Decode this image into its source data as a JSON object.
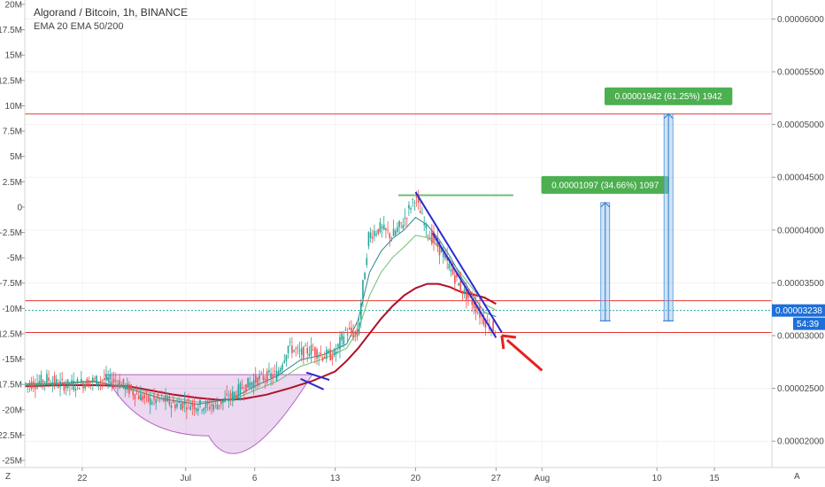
{
  "header": {
    "title": "Algorand / Bitcoin, 1h, BINANCE",
    "indicators": "EMA 20 EMA 50/200"
  },
  "corner": {
    "left": "Z",
    "right": "A"
  },
  "price_tag": {
    "value": "0.00003238",
    "countdown": "54:39",
    "color": "#1e6fd9"
  },
  "colors": {
    "ema20": "#2b8a8a",
    "ema50": "#6fbf73",
    "ema200": "#b0102a",
    "resistance": "#e53935",
    "current": "#26a69a",
    "channel": "#2a2ad6",
    "cup": "#b565c4",
    "target_band": "#90c4ef",
    "callout": "#4caf50",
    "arrow": "#e8201f"
  },
  "callouts": [
    {
      "label": "0.00001097 (34.66%) 1097"
    },
    {
      "label": "0.00001942 (61.25%) 1942"
    }
  ],
  "chart_data": {
    "type": "line",
    "title": "Algorand / Bitcoin, 1h, BINANCE",
    "x_ticks": [
      "22",
      "Jul",
      "6",
      "13",
      "20",
      "27",
      "Aug",
      "10",
      "15"
    ],
    "x_ticks_day": [
      22,
      31,
      37,
      44,
      51,
      58,
      62,
      72,
      77
    ],
    "x_range_day": [
      17,
      82
    ],
    "y_left_ticks": [
      "20M",
      "17.5M",
      "15M",
      "12.5M",
      "10M",
      "7.5M",
      "5M",
      "2.5M",
      "0",
      "-2.5M",
      "-5M",
      "-7.5M",
      "-10M",
      "-12.5M",
      "-15M",
      "-17.5M",
      "-20M",
      "-22.5M",
      "-25M"
    ],
    "y_right_ticks": [
      "0.00006000",
      "0.00005500",
      "0.00005000",
      "0.00004500",
      "0.00004000",
      "0.00003500",
      "0.00003000",
      "0.00002500",
      "0.00002000"
    ],
    "y_range": [
      1.75e-05,
      6.18e-05
    ],
    "horizontal_levels": [
      {
        "name": "resistance-top",
        "price": 5.1e-05
      },
      {
        "name": "resistance-upper",
        "price": 3.33e-05
      },
      {
        "name": "support-lower",
        "price": 3.03e-05
      },
      {
        "name": "current",
        "price": 3.238e-05
      },
      {
        "name": "local-high",
        "price": 4.33e-05
      }
    ],
    "price": {
      "day": [
        17,
        18,
        19,
        20,
        21,
        22,
        23,
        24,
        25,
        26,
        27,
        28,
        29,
        30,
        31,
        32,
        33,
        34,
        35,
        36,
        37,
        38,
        39,
        40,
        41,
        42,
        43,
        44,
        45,
        46,
        47,
        48,
        49,
        50,
        51,
        52,
        53,
        54,
        55,
        56,
        57,
        58
      ],
      "value": [
        2.54e-05,
        2.55e-05,
        2.59e-05,
        2.54e-05,
        2.53e-05,
        2.55e-05,
        2.57e-05,
        2.58e-05,
        2.57e-05,
        2.5e-05,
        2.43e-05,
        2.38e-05,
        2.4e-05,
        2.35e-05,
        2.36e-05,
        2.34e-05,
        2.33e-05,
        2.36e-05,
        2.42e-05,
        2.51e-05,
        2.57e-05,
        2.61e-05,
        2.63e-05,
        2.9e-05,
        2.83e-05,
        2.87e-05,
        2.81e-05,
        2.82e-05,
        3.05e-05,
        3e-05,
        3.95e-05,
        4.02e-05,
        3.94e-05,
        4.08e-05,
        4.32e-05,
        4e-05,
        3.85e-05,
        3.65e-05,
        3.45e-05,
        3.32e-05,
        3.15e-05,
        3.05e-05
      ]
    },
    "ema20": {
      "day": [
        17,
        20,
        23,
        26,
        29,
        32,
        35,
        37,
        39,
        41,
        43,
        45,
        46,
        47,
        48,
        49,
        50,
        51,
        52,
        53,
        54,
        55,
        56,
        57,
        58
      ],
      "value": [
        2.54e-05,
        2.55e-05,
        2.57e-05,
        2.5e-05,
        2.4e-05,
        2.35e-05,
        2.4e-05,
        2.52e-05,
        2.62e-05,
        2.77e-05,
        2.82e-05,
        2.92e-05,
        3.15e-05,
        3.6e-05,
        3.8e-05,
        3.92e-05,
        4e-05,
        4.12e-05,
        4.05e-05,
        3.92e-05,
        3.75e-05,
        3.55e-05,
        3.38e-05,
        3.22e-05,
        3.18e-05
      ]
    },
    "ema50": {
      "day": [
        17,
        20,
        23,
        26,
        29,
        32,
        35,
        37,
        39,
        41,
        43,
        45,
        46,
        47,
        48,
        49,
        50,
        51,
        52,
        53,
        54,
        55,
        56,
        57,
        58
      ],
      "value": [
        2.53e-05,
        2.54e-05,
        2.56e-05,
        2.51e-05,
        2.43e-05,
        2.37e-05,
        2.39e-05,
        2.48e-05,
        2.57e-05,
        2.71e-05,
        2.78e-05,
        2.88e-05,
        3.05e-05,
        3.38e-05,
        3.6e-05,
        3.74e-05,
        3.84e-05,
        3.95e-05,
        3.93e-05,
        3.85e-05,
        3.72e-05,
        3.58e-05,
        3.44e-05,
        3.3e-05,
        3.24e-05
      ]
    },
    "ema200": {
      "day": [
        17,
        20,
        23,
        26,
        28,
        30,
        32,
        34,
        36,
        38,
        40,
        42,
        44,
        45,
        46,
        47,
        48,
        49,
        50,
        51,
        52,
        53,
        54,
        55,
        56,
        57,
        58
      ],
      "value": [
        2.52e-05,
        2.53e-05,
        2.53e-05,
        2.52e-05,
        2.48e-05,
        2.44e-05,
        2.41e-05,
        2.39e-05,
        2.4e-05,
        2.44e-05,
        2.5e-05,
        2.57e-05,
        2.66e-05,
        2.76e-05,
        2.88e-05,
        3.02e-05,
        3.16e-05,
        3.28e-05,
        3.38e-05,
        3.45e-05,
        3.49e-05,
        3.49e-05,
        3.46e-05,
        3.41e-05,
        3.39e-05,
        3.36e-05,
        3.3e-05
      ]
    },
    "annotations": {
      "cup": {
        "start_day": 24,
        "end_day": 42,
        "rim_price": 2.63e-05,
        "bottom_price": 2.05e-05
      },
      "flag": [
        {
          "from_day": 41.5,
          "from_price": 2.65e-05,
          "to_day": 43.5,
          "to_price": 2.58e-05
        },
        {
          "from_day": 41.0,
          "from_price": 2.59e-05,
          "to_day": 43.0,
          "to_price": 2.49e-05
        }
      ],
      "wedge": [
        {
          "from_day": 51.0,
          "from_price": 4.36e-05,
          "to_day": 58.5,
          "to_price": 3.03e-05
        },
        {
          "from_day": 52.5,
          "from_price": 3.97e-05,
          "to_day": 58.0,
          "to_price": 2.98e-05
        }
      ],
      "targets": [
        {
          "day": 67.5,
          "base": 3.14e-05,
          "top": 4.26e-05
        },
        {
          "day": 73.0,
          "base": 3.14e-05,
          "top": 5.1e-05
        }
      ],
      "arrow": {
        "from_day": 62.0,
        "from_price": 2.67e-05,
        "to_day": 58.5,
        "to_price": 3e-05
      }
    }
  }
}
